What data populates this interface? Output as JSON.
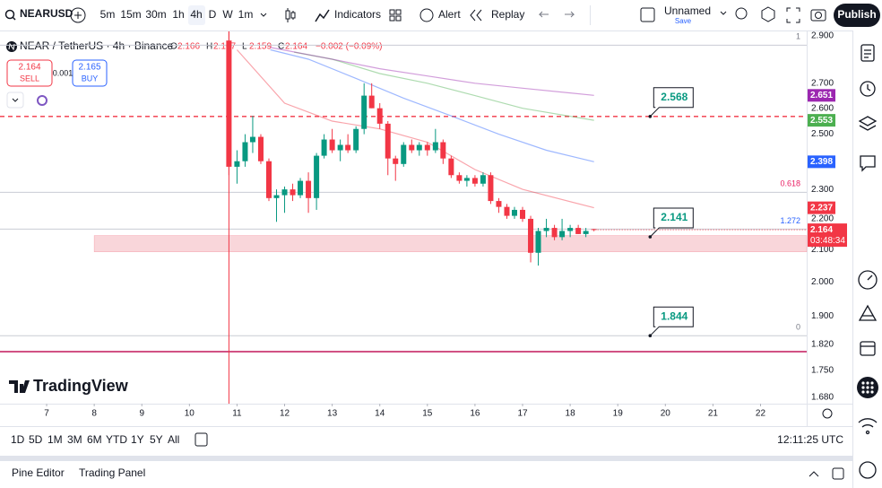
{
  "toolbar": {
    "symbol": "NEARUSD",
    "timeframes": [
      "5m",
      "15m",
      "30m",
      "1h",
      "4h",
      "D",
      "W",
      "1m"
    ],
    "indicators": "Indicators",
    "alert": "Alert",
    "replay": "Replay",
    "layout_name": "Unnamed",
    "save": "Save",
    "publish": "Publish"
  },
  "legend": {
    "title": "NEAR / TetherUS · 4h · Binance",
    "ohlc": [
      [
        "O",
        "2.166"
      ],
      [
        "H",
        "2.167"
      ],
      [
        "L",
        "2.159"
      ],
      [
        "C",
        "2.164"
      ]
    ],
    "change": "−0.002 (−0.09%)",
    "sell_price": "2.164",
    "sell": "SELL",
    "spread": "0.001",
    "buy_price": "2.165",
    "buy": "BUY"
  },
  "chart_data": {
    "type": "candlestick",
    "x": [
      10.83,
      11,
      11.17,
      11.33,
      11.5,
      11.67,
      11.83,
      12,
      12.17,
      12.33,
      12.5,
      12.67,
      12.83,
      13,
      13.17,
      13.33,
      13.5,
      13.67,
      13.83,
      14,
      14.17,
      14.33,
      14.5,
      14.67,
      14.83,
      15,
      15.17,
      15.33,
      15.5,
      15.67,
      15.83,
      16,
      16.17,
      16.33,
      16.5,
      16.67,
      16.83,
      17,
      17.17,
      17.33,
      17.5,
      17.67,
      17.83,
      18,
      18.17,
      18.33,
      18.5
    ],
    "open": [
      2.88,
      2.38,
      2.4,
      2.47,
      2.49,
      2.4,
      2.27,
      2.28,
      2.3,
      2.28,
      2.33,
      2.27,
      2.42,
      2.48,
      2.44,
      2.46,
      2.44,
      2.52,
      2.65,
      2.6,
      2.54,
      2.41,
      2.39,
      2.46,
      2.44,
      2.46,
      2.44,
      2.47,
      2.41,
      2.35,
      2.33,
      2.34,
      2.32,
      2.35,
      2.26,
      2.24,
      2.21,
      2.23,
      2.2,
      2.09,
      2.16,
      2.17,
      2.14,
      2.16,
      2.17,
      2.15,
      2.166
    ],
    "high": [
      2.92,
      2.44,
      2.5,
      2.57,
      2.5,
      2.41,
      2.3,
      2.31,
      2.32,
      2.34,
      2.36,
      2.43,
      2.5,
      2.52,
      2.48,
      2.5,
      2.53,
      2.7,
      2.7,
      2.62,
      2.55,
      2.42,
      2.47,
      2.48,
      2.47,
      2.47,
      2.52,
      2.48,
      2.42,
      2.36,
      2.35,
      2.35,
      2.36,
      2.36,
      2.27,
      2.25,
      2.24,
      2.24,
      2.21,
      2.17,
      2.2,
      2.18,
      2.2,
      2.18,
      2.18,
      2.17,
      2.167
    ],
    "low": [
      2.35,
      2.32,
      2.38,
      2.43,
      2.39,
      2.26,
      2.19,
      2.22,
      2.26,
      2.27,
      2.22,
      2.23,
      2.41,
      2.43,
      2.4,
      2.43,
      2.43,
      2.5,
      2.6,
      2.52,
      2.35,
      2.33,
      2.38,
      2.43,
      2.42,
      2.42,
      2.43,
      2.39,
      2.34,
      2.32,
      2.31,
      2.31,
      2.31,
      2.25,
      2.22,
      2.2,
      2.2,
      2.19,
      2.06,
      2.05,
      2.14,
      2.13,
      2.13,
      2.14,
      2.15,
      2.14,
      2.159
    ],
    "close": [
      2.38,
      2.4,
      2.47,
      2.49,
      2.4,
      2.27,
      2.28,
      2.3,
      2.28,
      2.33,
      2.27,
      2.42,
      2.48,
      2.44,
      2.46,
      2.44,
      2.52,
      2.65,
      2.6,
      2.54,
      2.41,
      2.39,
      2.46,
      2.44,
      2.46,
      2.44,
      2.47,
      2.41,
      2.35,
      2.33,
      2.34,
      2.32,
      2.35,
      2.26,
      2.24,
      2.21,
      2.23,
      2.2,
      2.09,
      2.16,
      2.17,
      2.14,
      2.16,
      2.17,
      2.15,
      2.16,
      2.164
    ],
    "up_color": "#089981",
    "down_color": "#f23645",
    "log_scale": true,
    "xlim": [
      6.02,
      22.97
    ],
    "ylim": [
      1.664,
      2.92
    ],
    "xticks": [
      7,
      8,
      9,
      10,
      11,
      12,
      13,
      14,
      15,
      16,
      17,
      18,
      19,
      20,
      21,
      22
    ],
    "yticks": [
      {
        "value": 2.9,
        "label": "2.900"
      },
      {
        "value": 2.7,
        "label": "2.700"
      },
      {
        "value": 2.6,
        "label": "2.600"
      },
      {
        "value": 2.5,
        "label": "2.500"
      },
      {
        "value": 2.3,
        "label": "2.300"
      },
      {
        "value": 2.2,
        "label": "2.200"
      },
      {
        "value": 2.1,
        "label": "2.100"
      },
      {
        "value": 2.0,
        "label": "2.000"
      },
      {
        "value": 1.9,
        "label": "1.900"
      },
      {
        "value": 1.82,
        "label": "1.820"
      },
      {
        "value": 1.75,
        "label": "1.750"
      },
      {
        "value": 1.68,
        "label": "1.680"
      }
    ],
    "moving_averages": [
      {
        "color": "#f23645",
        "x": [
          11,
          12,
          13,
          14,
          15,
          16,
          17,
          18.5
        ],
        "values": [
          2.84,
          2.62,
          2.55,
          2.52,
          2.47,
          2.37,
          2.3,
          2.237
        ]
      },
      {
        "color": "#2962ff",
        "x": [
          11.7,
          12.5,
          13.5,
          14.5,
          15.5,
          16.5,
          17.5,
          18.5
        ],
        "values": [
          2.84,
          2.8,
          2.72,
          2.64,
          2.57,
          2.5,
          2.44,
          2.398
        ]
      },
      {
        "color": "#4caf50",
        "x": [
          12.2,
          13,
          14,
          15,
          16,
          17,
          18.5
        ],
        "values": [
          2.83,
          2.8,
          2.74,
          2.7,
          2.65,
          2.6,
          2.553
        ]
      },
      {
        "color": "#9c27b0",
        "x": [
          11.7,
          13,
          14,
          15,
          16,
          17,
          18.5
        ],
        "values": [
          2.85,
          2.8,
          2.76,
          2.73,
          2.7,
          2.68,
          2.651
        ]
      }
    ],
    "resistance_line": 2.568,
    "support_line": 1.8,
    "zone": [
      2.093,
      2.145
    ],
    "zone_color": "#f7c5cb",
    "fib_levels": [
      {
        "value": 2.86,
        "label": "1"
      },
      {
        "value": 2.29,
        "label": "0.618"
      },
      {
        "value": 2.166,
        "label": "1.272"
      },
      {
        "value": 1.844,
        "label": "0"
      }
    ],
    "callouts": [
      {
        "x": 19.68,
        "y": 2.568
      },
      {
        "x": 19.68,
        "y": 2.141
      },
      {
        "x": 19.68,
        "y": 1.844
      }
    ],
    "countdown": "03:48:34"
  },
  "logo": "TradingView",
  "range_buttons": [
    "1D",
    "5D",
    "1M",
    "3M",
    "6M",
    "YTD",
    "1Y",
    "5Y",
    "All"
  ],
  "clock": "12:11:25 UTC",
  "panel_tabs": [
    "Pine Editor",
    "Trading Panel"
  ]
}
